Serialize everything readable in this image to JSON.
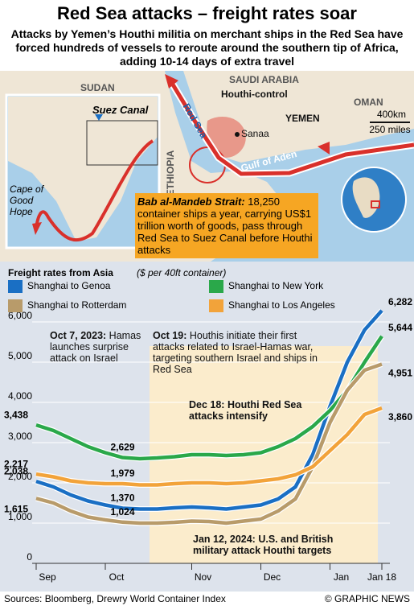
{
  "header": {
    "title": "Red Sea attacks – freight rates soar",
    "subtitle": "Attacks by Yemen’s Houthi militia on merchant ships in the Red Sea have forced hundreds of vessels to reroute around the southern tip of Africa, adding 10-14 days of extra travel"
  },
  "map": {
    "sudan": "SUDAN",
    "saudi": "SAUDI ARABIA",
    "oman": "OMAN",
    "yemen": "YEMEN",
    "houthi": "Houthi-control",
    "sanaa": "Sanaa",
    "red_sea": "Red Sea",
    "gulf": "Gulf of Aden",
    "ethiopia": "ETHIOPIA",
    "suez": "Suez Canal",
    "cape": "Cape of Good Hope",
    "km": "400km",
    "miles": "250 miles",
    "strait_title": "Bab al-Mandeb Strait:",
    "strait_text": "18,250 container ships a year, carrying US$1 trillion worth of goods, pass through Red Sea to Suez Canal before Houthi attacks"
  },
  "chart_data": {
    "type": "line",
    "title": "Freight rates from Asia",
    "subtitle": "($ per 40ft container)",
    "categories": [
      "Sep",
      null,
      null,
      null,
      "Oct",
      null,
      null,
      null,
      null,
      "Nov",
      null,
      null,
      null,
      "Dec",
      null,
      null,
      null,
      "Jan",
      null,
      null,
      "Jan 18"
    ],
    "series": [
      {
        "name": "Shanghai to Genoa",
        "color": "#1a6fc4",
        "values": [
          2038,
          1900,
          1700,
          1550,
          1450,
          1370,
          1350,
          1350,
          1380,
          1400,
          1380,
          1350,
          1400,
          1450,
          1600,
          1900,
          2700,
          3900,
          5000,
          5800,
          6282
        ],
        "value_labels": [
          "2,038",
          null,
          null,
          null,
          null,
          "1,370",
          null,
          null,
          null,
          null,
          null,
          null,
          null,
          null,
          null,
          null,
          null,
          null,
          null,
          null,
          "6,282"
        ]
      },
      {
        "name": "Shanghai to New York",
        "color": "#2aa84a",
        "values": [
          3438,
          3300,
          3100,
          2900,
          2750,
          2629,
          2600,
          2620,
          2650,
          2700,
          2700,
          2680,
          2700,
          2750,
          2900,
          3100,
          3400,
          3800,
          4300,
          5000,
          5644
        ],
        "value_labels": [
          "3,438",
          null,
          null,
          null,
          null,
          "2,629",
          null,
          null,
          null,
          null,
          null,
          null,
          null,
          null,
          null,
          null,
          null,
          null,
          null,
          null,
          "5,644"
        ]
      },
      {
        "name": "Shanghai to Rotterdam",
        "color": "#b89b6a",
        "values": [
          1615,
          1500,
          1300,
          1150,
          1080,
          1024,
          1000,
          1000,
          1020,
          1050,
          1040,
          1000,
          1050,
          1100,
          1300,
          1600,
          2400,
          3500,
          4300,
          4800,
          4951
        ],
        "value_labels": [
          "1,615",
          null,
          null,
          null,
          null,
          "1,024",
          null,
          null,
          null,
          null,
          null,
          null,
          null,
          null,
          null,
          null,
          null,
          null,
          null,
          null,
          "4,951"
        ]
      },
      {
        "name": "Shanghai to Los Angeles",
        "color": "#f2a33a",
        "values": [
          2217,
          2150,
          2050,
          2000,
          1980,
          1979,
          1950,
          1950,
          1980,
          2000,
          2000,
          1980,
          2000,
          2050,
          2100,
          2200,
          2400,
          2800,
          3200,
          3700,
          3860
        ],
        "value_labels": [
          "2,217",
          null,
          null,
          null,
          null,
          "1,979",
          null,
          null,
          null,
          null,
          null,
          null,
          null,
          null,
          null,
          null,
          null,
          null,
          null,
          null,
          "3,860"
        ]
      }
    ],
    "ylim": [
      0,
      6300
    ],
    "yticks": [
      0,
      {
        "value": 1000,
        "label": "1,000"
      },
      {
        "value": 2000,
        "label": "2,000"
      },
      {
        "value": 3000,
        "label": "3,000"
      },
      {
        "value": 4000,
        "label": "4,000"
      },
      {
        "value": 5000,
        "label": "5,000"
      },
      {
        "value": 6000,
        "label": "6,000"
      }
    ],
    "grid": true,
    "annotations": [
      {
        "title": "Oct 7, 2023:",
        "text": "Hamas launches surprise attack on Israel"
      },
      {
        "title": "Oct 19:",
        "text": "Houthis initiate their first attacks related to Israel-Hamas war, targeting southern Israel and ships in Red Sea"
      },
      {
        "title": "Dec 18:",
        "text": "Houthi Red Sea attacks intensify"
      },
      {
        "title": "Jan 12, 2024:",
        "text": "U.S. and British military attack Houthi targets"
      }
    ]
  },
  "footer": {
    "sources": "Sources: Bloomberg, Drewry World Container Index",
    "credit": "© GRAPHIC NEWS"
  }
}
